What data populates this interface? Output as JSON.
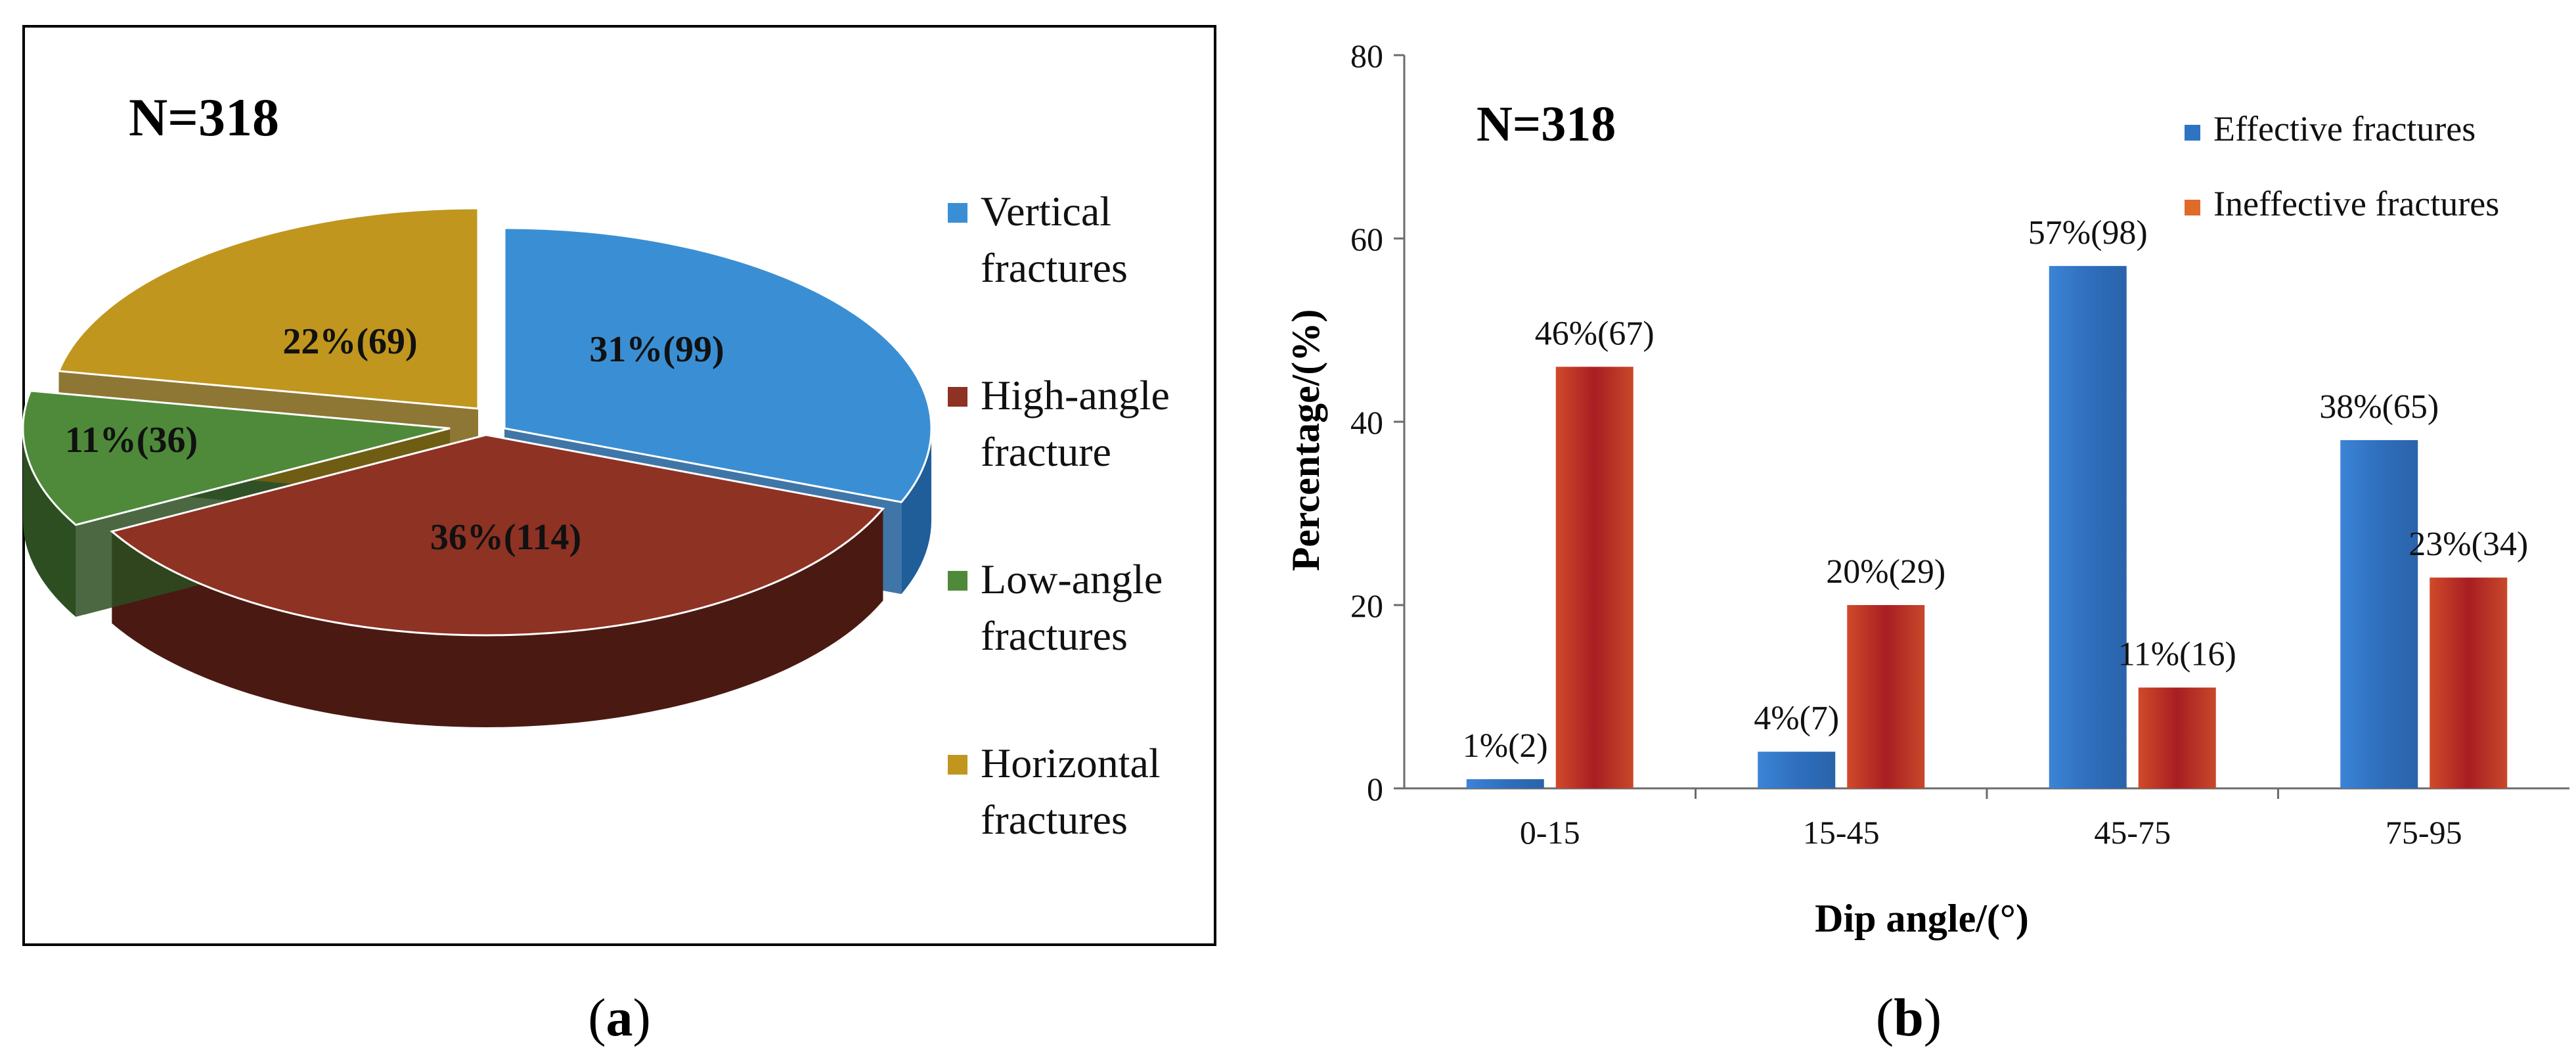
{
  "panel_a": {
    "caption_open": "(",
    "caption_letter": "a",
    "caption_close": ")",
    "n_label": "N=318"
  },
  "panel_b": {
    "caption_open": "(",
    "caption_letter": "b",
    "caption_close": ")",
    "n_label": "N=318"
  },
  "chart_data": [
    {
      "type": "pie",
      "style": "3d-exploded",
      "title": "N=318",
      "total": 318,
      "legend_position": "right",
      "slices": [
        {
          "name": "Vertical fractures",
          "legend_lines": [
            "Vertical",
            "fractures"
          ],
          "percent": 31,
          "count": 99,
          "label": "31%(99)",
          "color": "#3A8FD4",
          "dark": "#1F5E98"
        },
        {
          "name": "High-angle fracture",
          "legend_lines": [
            "High-angle",
            "fracture"
          ],
          "percent": 36,
          "count": 114,
          "label": "36%(114)",
          "color": "#8E3224",
          "dark": "#4A1A12"
        },
        {
          "name": "Low-angle fractures",
          "legend_lines": [
            "Low-angle",
            "fractures"
          ],
          "percent": 11,
          "count": 36,
          "label": "11%(36)",
          "color": "#4E8A3A",
          "dark": "#2C4E21"
        },
        {
          "name": "Horizontal fractures",
          "legend_lines": [
            "Horizontal",
            "fractures"
          ],
          "percent": 22,
          "count": 69,
          "label": "22%(69)",
          "color": "#C0961E",
          "dark": "#7A5F12"
        }
      ]
    },
    {
      "type": "bar",
      "title": "N=318",
      "xlabel": "Dip angle/(°)",
      "ylabel": "Percentage/(%)",
      "ylim": [
        0,
        80
      ],
      "yticks": [
        0,
        20,
        40,
        60,
        80
      ],
      "grid": false,
      "legend_position": "top-right",
      "categories": [
        "0-15",
        "15-45",
        "45-75",
        "75-95"
      ],
      "series": [
        {
          "name": "Effective fractures",
          "color": "#2F74C4",
          "values": [
            1,
            4,
            57,
            38
          ],
          "labels": [
            "1%(2)",
            "4%(7)",
            "57%(98)",
            "38%(65)"
          ]
        },
        {
          "name": "Ineffective fractures",
          "color": "#B42222",
          "legend_color": "#E06A2A",
          "values": [
            46,
            20,
            11,
            23
          ],
          "labels": [
            "46%(67)",
            "20%(29)",
            "11%(16)",
            "23%(34)"
          ]
        }
      ]
    }
  ]
}
